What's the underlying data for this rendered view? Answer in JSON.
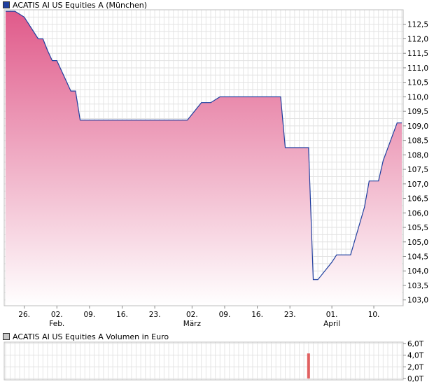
{
  "legend": {
    "price_label": "ACATIS AI US Equities A (München)",
    "price_color": "#1f3f9f",
    "volume_label": "ACATIS AI US Equities A Volumen in Euro",
    "volume_swatch_color": "#c8c8c8"
  },
  "chart_data": [
    {
      "type": "area",
      "series": [
        {
          "values": [
            {
              "x": "2024-01-22",
              "y": 112.95
            },
            {
              "x": "2024-01-24",
              "y": 112.95
            },
            {
              "x": "2024-01-25",
              "y": 112.85
            },
            {
              "x": "2024-01-26",
              "y": 112.75
            },
            {
              "x": "2024-01-29",
              "y": 112.0
            },
            {
              "x": "2024-01-30",
              "y": 112.0
            },
            {
              "x": "2024-01-31",
              "y": 111.6
            },
            {
              "x": "2024-02-01",
              "y": 111.25
            },
            {
              "x": "2024-02-02",
              "y": 111.25
            },
            {
              "x": "2024-02-05",
              "y": 110.2
            },
            {
              "x": "2024-02-06",
              "y": 110.2
            },
            {
              "x": "2024-02-07",
              "y": 109.2
            },
            {
              "x": "2024-02-29",
              "y": 109.2
            },
            {
              "x": "2024-03-01",
              "y": 109.2
            },
            {
              "x": "2024-03-04",
              "y": 109.8
            },
            {
              "x": "2024-03-05",
              "y": 109.8
            },
            {
              "x": "2024-03-06",
              "y": 109.8
            },
            {
              "x": "2024-03-08",
              "y": 110.0
            },
            {
              "x": "2024-03-20",
              "y": 110.0
            },
            {
              "x": "2024-03-21",
              "y": 110.0
            },
            {
              "x": "2024-03-22",
              "y": 108.25
            },
            {
              "x": "2024-03-27",
              "y": 108.25
            },
            {
              "x": "2024-03-28",
              "y": 103.7
            },
            {
              "x": "2024-03-29",
              "y": 103.7
            },
            {
              "x": "2024-04-01",
              "y": 104.3
            },
            {
              "x": "2024-04-02",
              "y": 104.55
            },
            {
              "x": "2024-04-05",
              "y": 104.55
            },
            {
              "x": "2024-04-08",
              "y": 106.2
            },
            {
              "x": "2024-04-09",
              "y": 107.1
            },
            {
              "x": "2024-04-11",
              "y": 107.1
            },
            {
              "x": "2024-04-12",
              "y": 107.8
            },
            {
              "x": "2024-04-15",
              "y": 109.1
            },
            {
              "x": "2024-04-16",
              "y": 109.1
            }
          ]
        }
      ],
      "ylim": [
        102.8,
        113.0
      ],
      "y_ticks": [
        "103,0",
        "103,5",
        "104,0",
        "104,5",
        "105,0",
        "105,5",
        "106,0",
        "106,5",
        "107,0",
        "107,5",
        "108,0",
        "108,5",
        "109,0",
        "109,5",
        "110,0",
        "110,5",
        "111,0",
        "111,5",
        "112,0",
        "112,5"
      ],
      "x_ticks": [
        {
          "date": "2024-01-26",
          "label": "26.",
          "sub": ""
        },
        {
          "date": "2024-02-02",
          "label": "02.",
          "sub": "Feb."
        },
        {
          "date": "2024-02-09",
          "label": "09.",
          "sub": ""
        },
        {
          "date": "2024-02-16",
          "label": "16.",
          "sub": ""
        },
        {
          "date": "2024-02-23",
          "label": "23.",
          "sub": ""
        },
        {
          "date": "2024-03-02",
          "label": "02.",
          "sub": "März"
        },
        {
          "date": "2024-03-09",
          "label": "09.",
          "sub": ""
        },
        {
          "date": "2024-03-16",
          "label": "16.",
          "sub": ""
        },
        {
          "date": "2024-03-23",
          "label": "23.",
          "sub": ""
        },
        {
          "date": "2024-04-01",
          "label": "01.",
          "sub": "April"
        },
        {
          "date": "2024-04-10",
          "label": "10.",
          "sub": ""
        }
      ],
      "xlim": [
        "2024-01-22",
        "2024-04-16"
      ],
      "grid": true,
      "line_color": "#1f3f9f",
      "fill_top_color": "#e05a8a",
      "fill_bottom_color": "#ffffff"
    },
    {
      "type": "bar",
      "series": [
        {
          "values": [
            {
              "x": "2024-03-27",
              "y": 4.3
            }
          ]
        }
      ],
      "ylim": [
        0,
        6
      ],
      "y_ticks": [
        "0,0T",
        "2,0T",
        "4,0T",
        "6,0T"
      ],
      "grid": true,
      "bar_color": "#e06060"
    }
  ]
}
